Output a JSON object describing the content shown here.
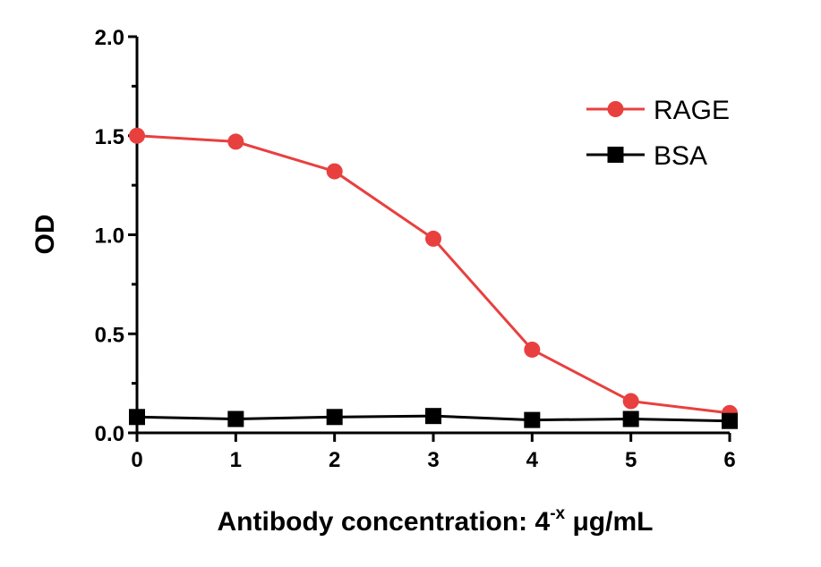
{
  "chart_data": {
    "type": "line",
    "title": "",
    "ylabel": "OD",
    "xlabel": {
      "prefix": "Antibody concentration: 4",
      "superscript": "-x",
      "suffix": " μg/mL"
    },
    "xlim": [
      0,
      6
    ],
    "ylim": [
      0,
      2.0
    ],
    "xticks": [
      "0",
      "1",
      "2",
      "3",
      "4",
      "5",
      "6"
    ],
    "yticks": [
      "0.0",
      "0.5",
      "1.0",
      "1.5",
      "2.0"
    ],
    "grid": false,
    "legend_position": "top-right",
    "x": [
      0,
      1,
      2,
      3,
      4,
      5,
      6
    ],
    "series": [
      {
        "name": "RAGE",
        "marker": "circle",
        "color": "#e8403f",
        "values": [
          1.5,
          1.47,
          1.32,
          0.98,
          0.42,
          0.16,
          0.1
        ]
      },
      {
        "name": "BSA",
        "marker": "square",
        "color": "#000000",
        "values": [
          0.08,
          0.07,
          0.08,
          0.085,
          0.065,
          0.07,
          0.06
        ]
      }
    ]
  }
}
